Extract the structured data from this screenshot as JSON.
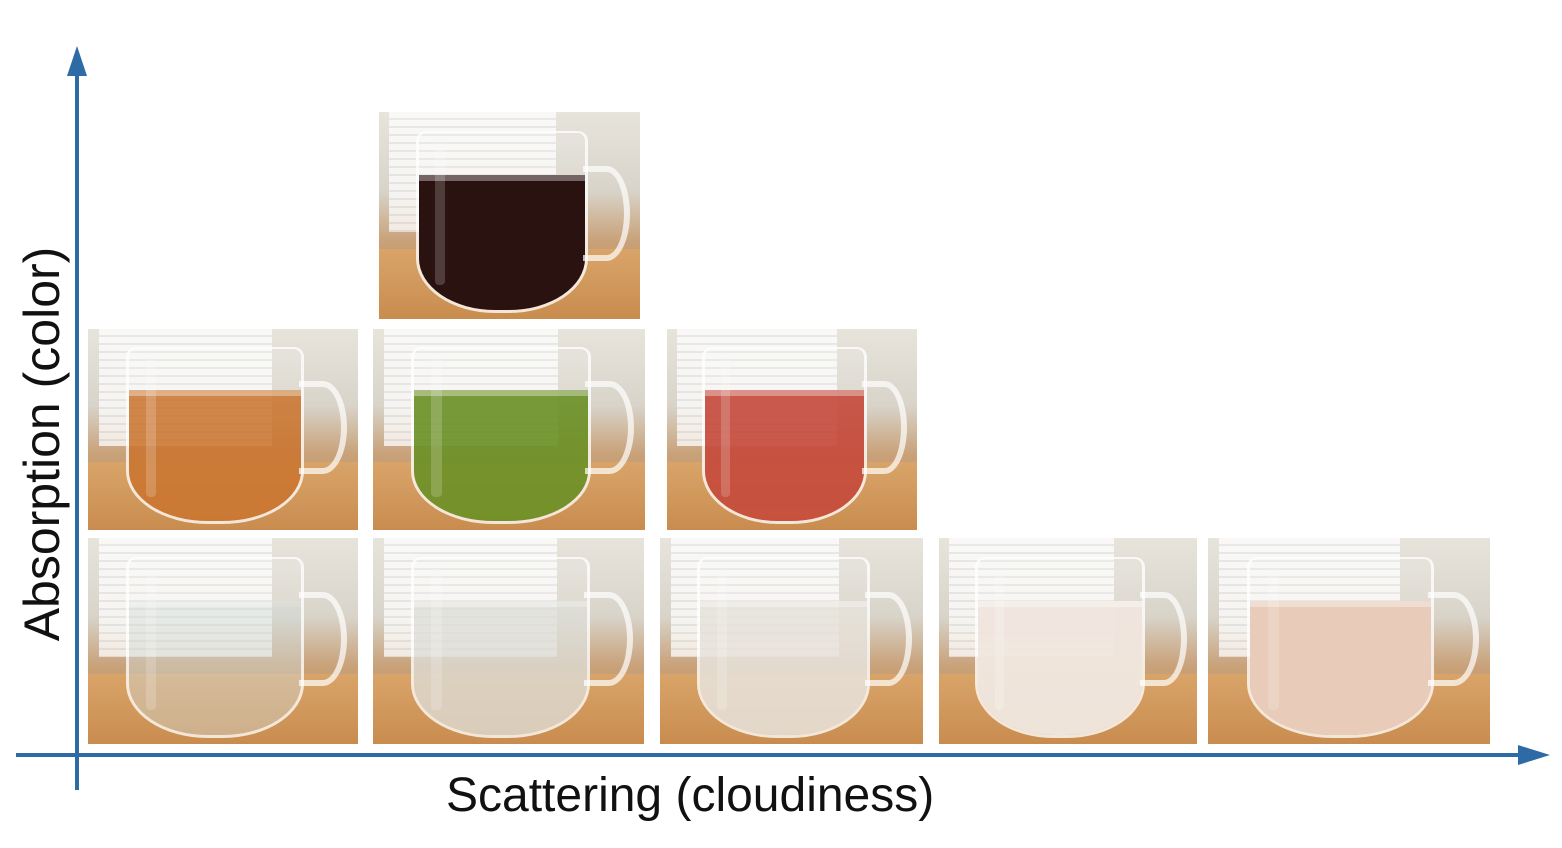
{
  "figure": {
    "x_axis_label": "Scattering (cloudiness)",
    "y_axis_label": "Absorption (color)",
    "axis_color": "#2e6aa6"
  },
  "photos": [
    {
      "name": "mug-clear-water",
      "liquid_color": "#c9d3d2",
      "opacity": 0.35
    },
    {
      "name": "mug-slightly-cloudy",
      "liquid_color": "#dcdcd6",
      "opacity": 0.75
    },
    {
      "name": "mug-cloudy",
      "liquid_color": "#e6e2da",
      "opacity": 0.85
    },
    {
      "name": "mug-very-cloudy",
      "liquid_color": "#f0e6de",
      "opacity": 0.97
    },
    {
      "name": "mug-milky",
      "liquid_color": "#e8cbb8",
      "opacity": 1.0
    },
    {
      "name": "mug-light-tea",
      "liquid_color": "#c9732c",
      "opacity": 0.85
    },
    {
      "name": "mug-green-tea",
      "liquid_color": "#6a8f24",
      "opacity": 0.9
    },
    {
      "name": "mug-red-tea",
      "liquid_color": "#c5493a",
      "opacity": 0.9
    },
    {
      "name": "mug-dark-tea",
      "liquid_color": "#2a1210",
      "opacity": 1.0
    }
  ]
}
